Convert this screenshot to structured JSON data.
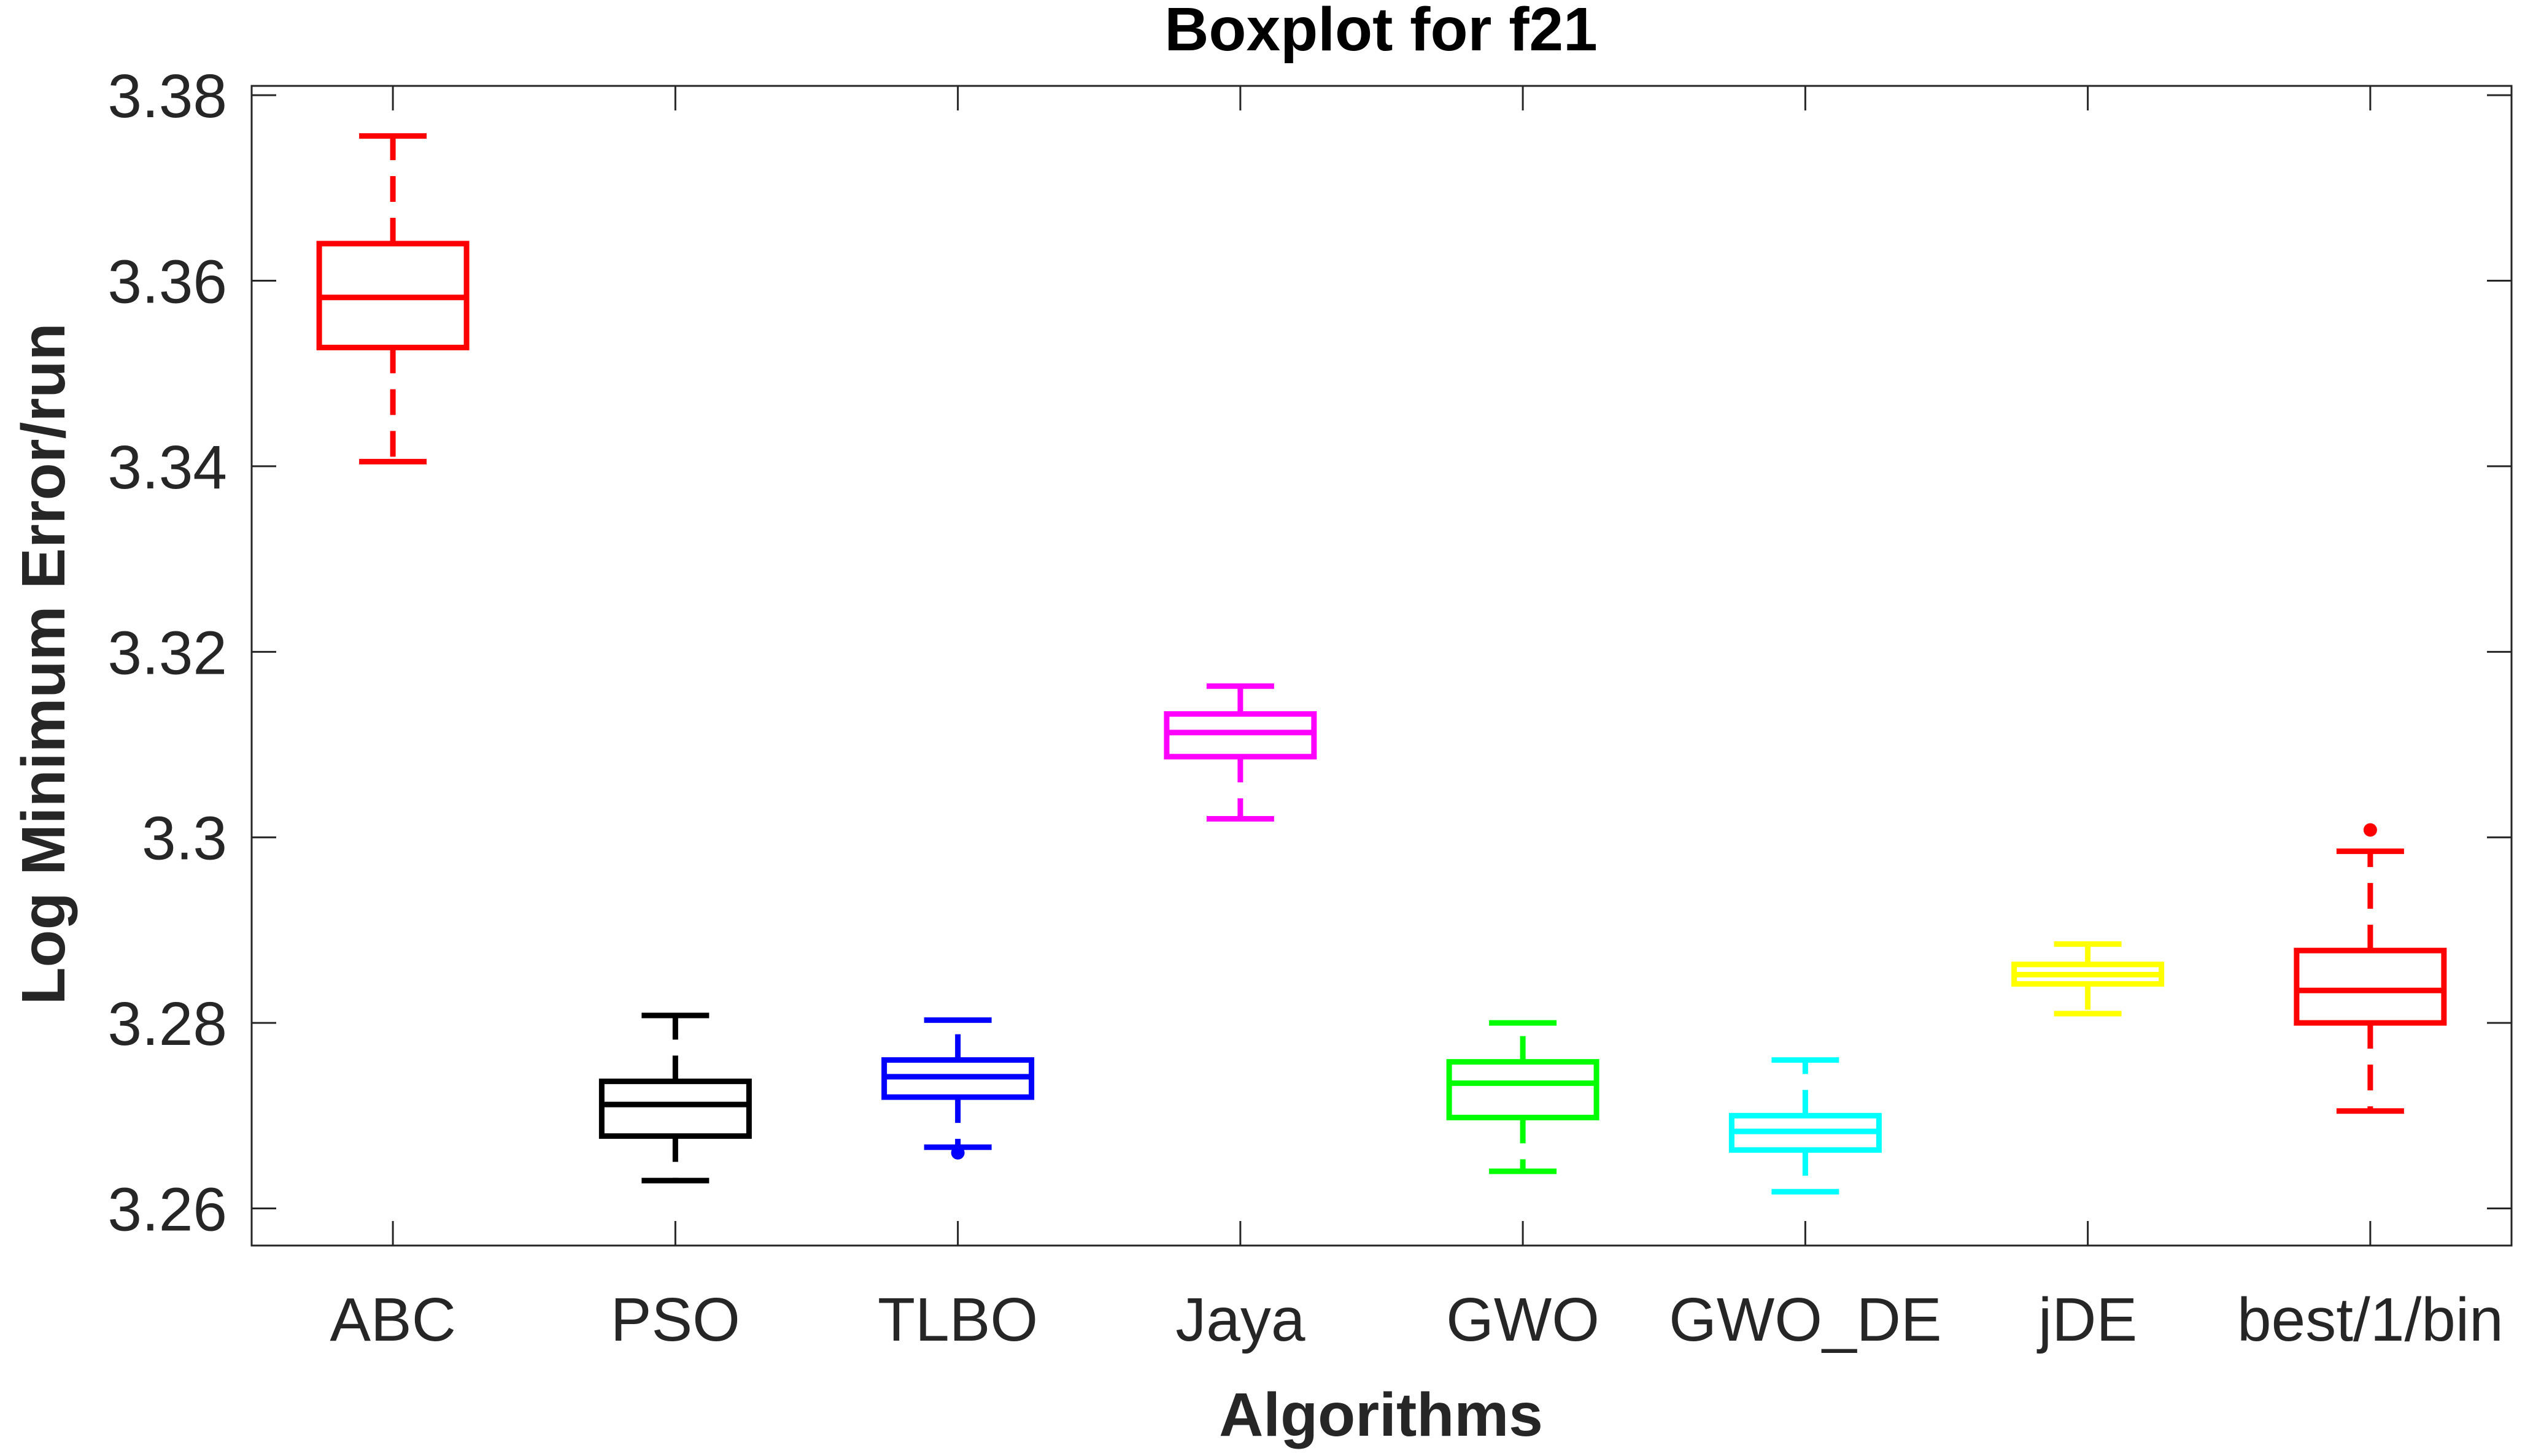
{
  "chart_data": {
    "type": "boxplot",
    "title": "Boxplot for f21",
    "xlabel": "Algorithms",
    "ylabel": "Log Minimum Error/run",
    "ylim": [
      3.256,
      3.381
    ],
    "yticks": [
      "3.26",
      "3.28",
      "3.3",
      "3.32",
      "3.34",
      "3.36",
      "3.38"
    ],
    "categories": [
      "ABC",
      "PSO",
      "TLBO",
      "Jaya",
      "GWO",
      "GWO_DE",
      "jDE",
      "best/1/bin"
    ],
    "boxes": [
      {
        "label": "ABC",
        "color": "#ff0000",
        "whisker_low": 3.3405,
        "q1": 3.3528,
        "median": 3.3582,
        "q3": 3.364,
        "whisker_high": 3.3756,
        "outliers": []
      },
      {
        "label": "PSO",
        "color": "#000000",
        "whisker_low": 3.263,
        "q1": 3.2678,
        "median": 3.2712,
        "q3": 3.2737,
        "whisker_high": 3.2808,
        "outliers": []
      },
      {
        "label": "TLBO",
        "color": "#0000ff",
        "whisker_low": 3.2666,
        "q1": 3.272,
        "median": 3.2742,
        "q3": 3.276,
        "whisker_high": 3.2803,
        "outliers": [
          3.266
        ]
      },
      {
        "label": "Jaya",
        "color": "#ff00ff",
        "whisker_low": 3.302,
        "q1": 3.3087,
        "median": 3.3113,
        "q3": 3.3133,
        "whisker_high": 3.3163,
        "outliers": []
      },
      {
        "label": "GWO",
        "color": "#00ff00",
        "whisker_low": 3.264,
        "q1": 3.2698,
        "median": 3.2735,
        "q3": 3.2758,
        "whisker_high": 3.28,
        "outliers": []
      },
      {
        "label": "GWO_DE",
        "color": "#00ffff",
        "whisker_low": 3.2618,
        "q1": 3.2663,
        "median": 3.2683,
        "q3": 3.27,
        "whisker_high": 3.276,
        "outliers": []
      },
      {
        "label": "jDE",
        "color": "#ffff00",
        "whisker_low": 3.281,
        "q1": 3.2842,
        "median": 3.2852,
        "q3": 3.2863,
        "whisker_high": 3.2885,
        "outliers": []
      },
      {
        "label": "best/1/bin",
        "color": "#ff0000",
        "whisker_low": 3.2705,
        "q1": 3.28,
        "median": 3.2835,
        "q3": 3.2878,
        "whisker_high": 3.2985,
        "outliers": [
          3.3008
        ]
      }
    ],
    "grid": false,
    "legend": "none"
  }
}
